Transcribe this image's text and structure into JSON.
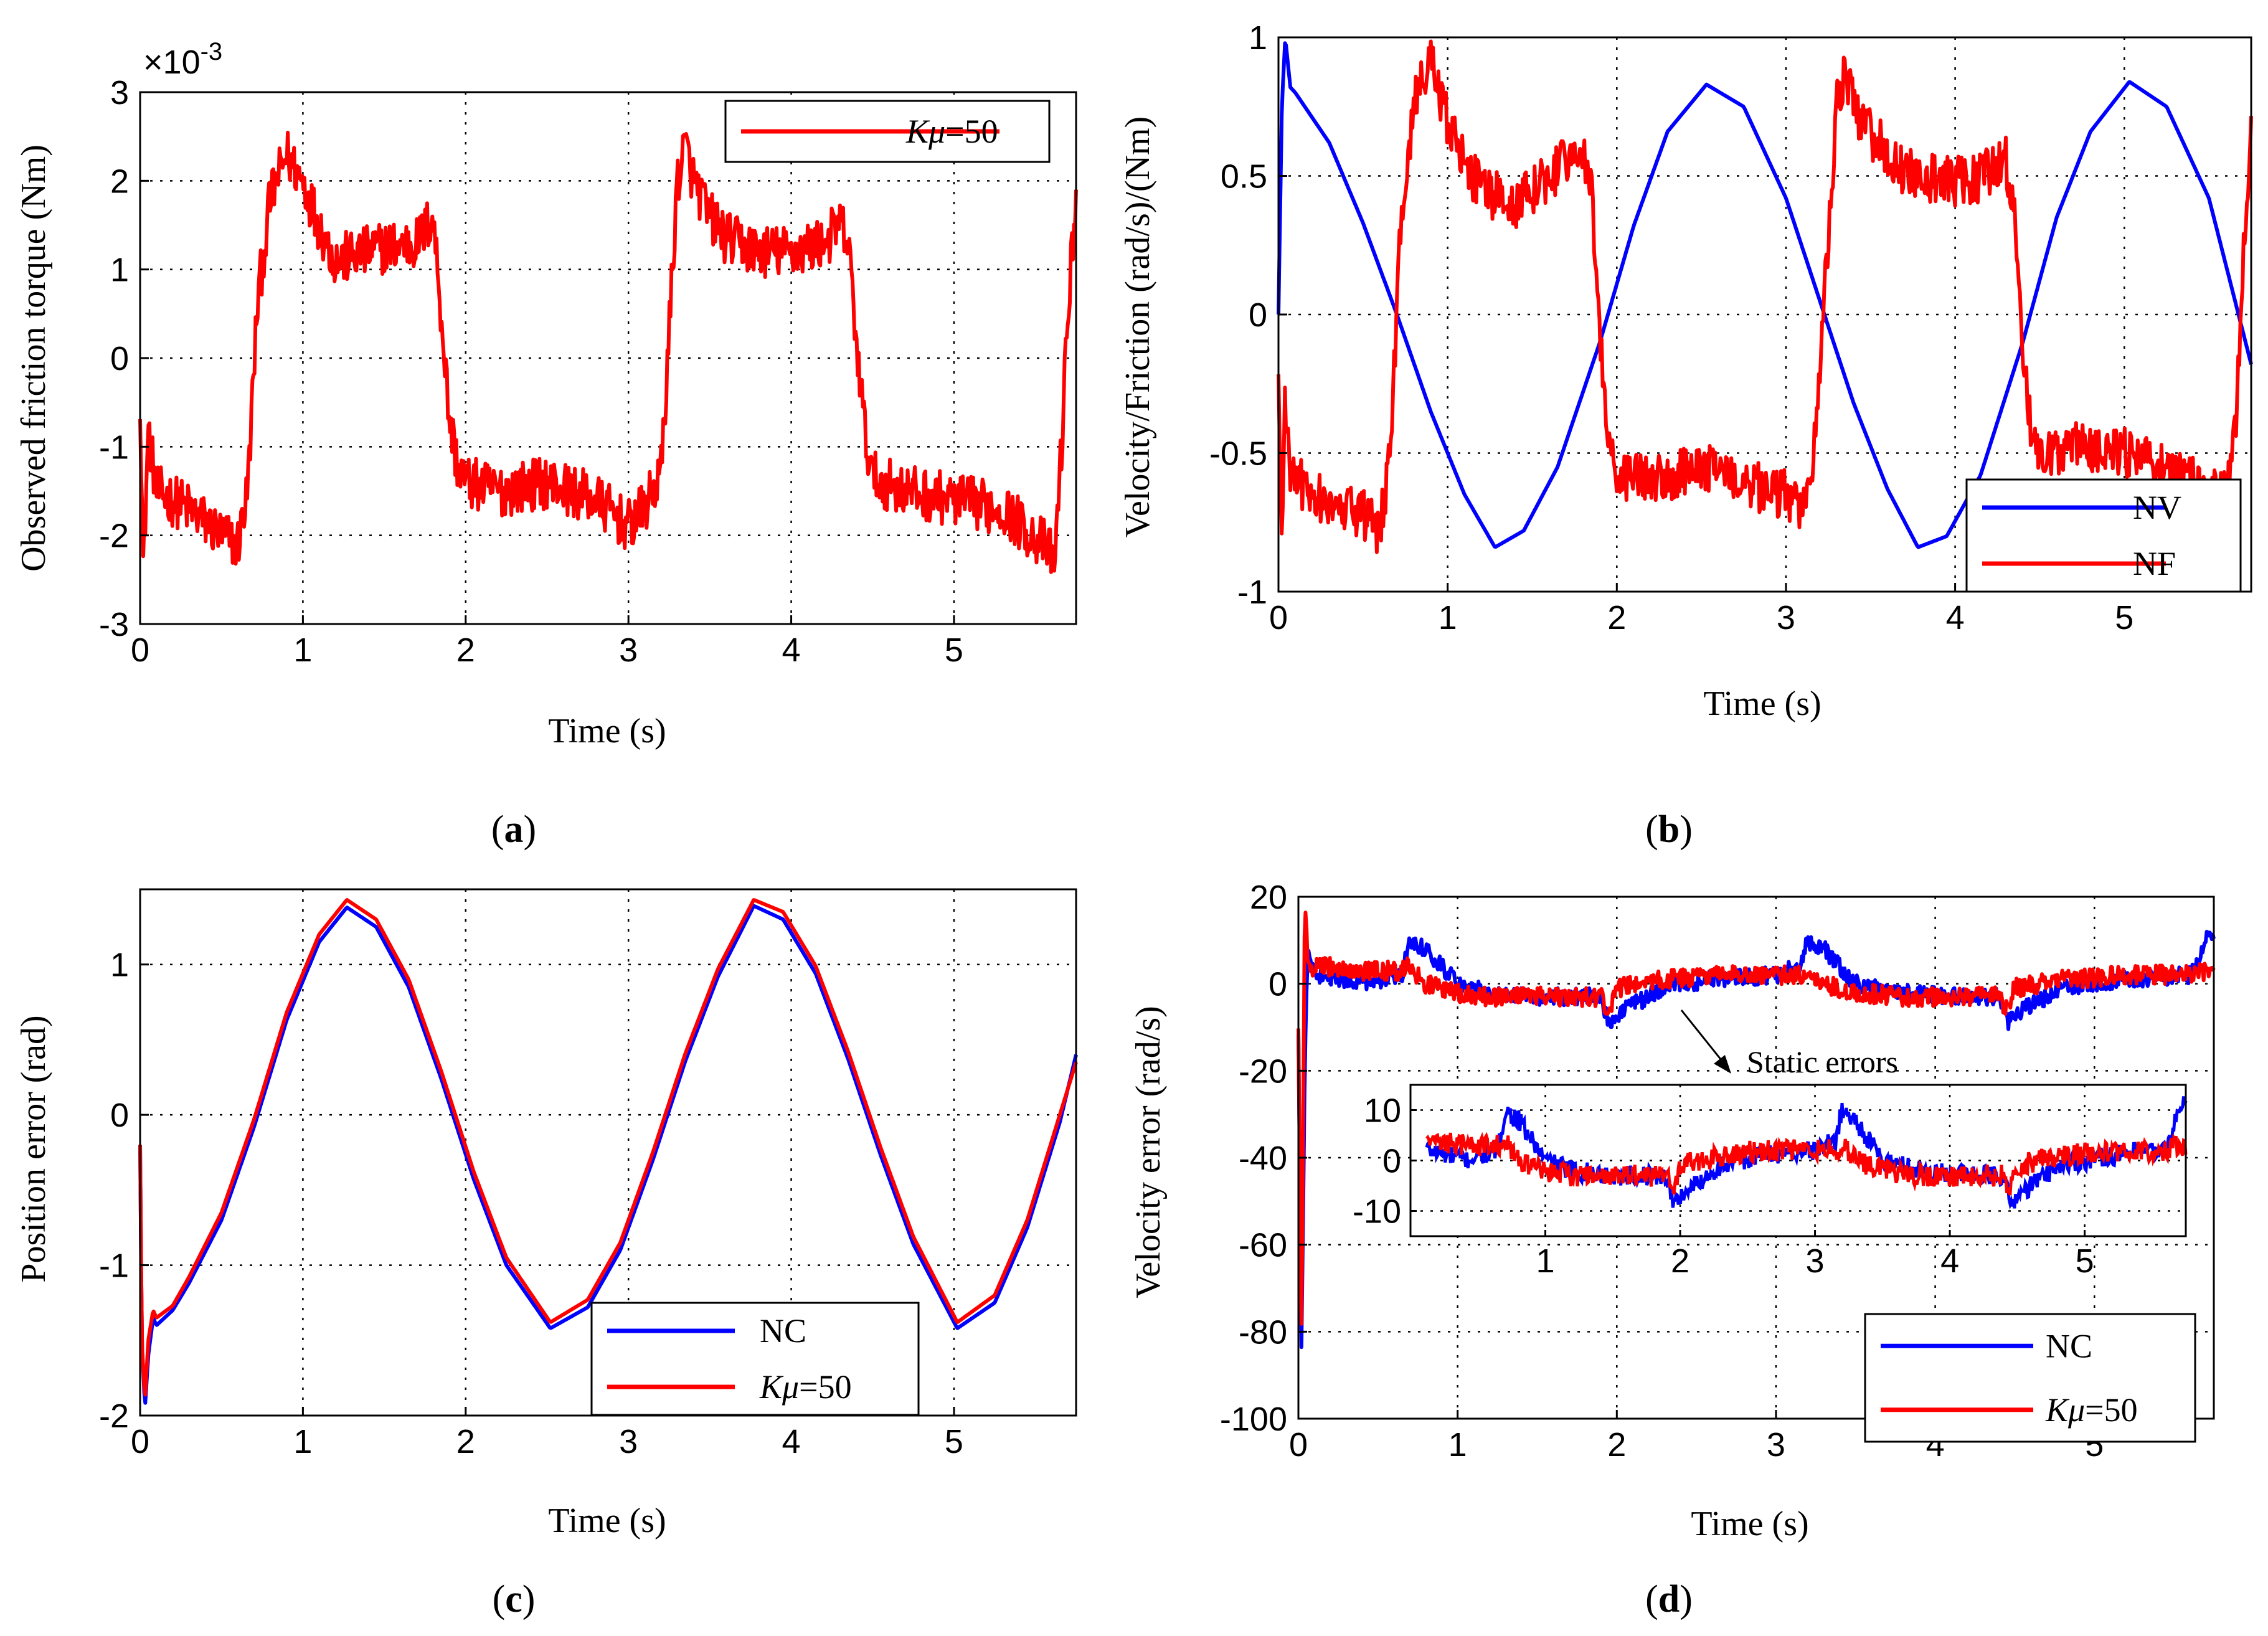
{
  "colors": {
    "blue": "#0000ff",
    "red": "#ff0000",
    "axis": "#000000"
  },
  "chart_data": [
    {
      "type": "line",
      "caption": "a",
      "title": "",
      "xlabel": "Time (s)",
      "ylabel": "Observed friction torque (Nm)",
      "xlim": [
        0,
        5.75
      ],
      "ylim": [
        -3,
        3
      ],
      "y_exponent": "×10",
      "y_exponent_power": "-3",
      "xticks": [
        "0",
        "1",
        "2",
        "3",
        "4",
        "5"
      ],
      "yticks": [
        "-3",
        "-2",
        "-1",
        "0",
        "1",
        "2",
        "3"
      ],
      "legend": {
        "placement": "top-right",
        "entries": [
          {
            "prefix": "K",
            "mu": "μ",
            "suffix": "=50",
            "color": "#ff0000"
          }
        ]
      },
      "series": [
        {
          "name": "Kμ=50",
          "color": "#ff0000",
          "x": [
            0,
            0.02,
            0.05,
            0.1,
            0.3,
            0.5,
            0.6,
            0.66,
            0.72,
            0.8,
            0.9,
            1.0,
            1.1,
            1.2,
            1.3,
            1.5,
            1.7,
            1.8,
            1.85,
            1.9,
            1.95,
            2.0,
            2.2,
            2.5,
            2.8,
            3.0,
            3.1,
            3.2,
            3.25,
            3.3,
            3.35,
            3.4,
            3.5,
            3.6,
            3.8,
            4.0,
            4.2,
            4.3,
            4.35,
            4.4,
            4.45,
            4.5,
            4.7,
            5.0,
            5.3,
            5.55,
            5.62,
            5.66,
            5.7,
            5.75
          ],
          "y": [
            -0.4,
            -2.4,
            -0.8,
            -1.5,
            -1.7,
            -2.0,
            -2.1,
            -1.5,
            0.6,
            1.8,
            2.3,
            2.0,
            1.5,
            1.1,
            1.15,
            1.25,
            1.3,
            1.6,
            0.5,
            -0.7,
            -1.2,
            -1.4,
            -1.5,
            -1.4,
            -1.6,
            -1.9,
            -1.7,
            -1.3,
            0.3,
            2.0,
            2.4,
            2.0,
            1.6,
            1.35,
            1.2,
            1.2,
            1.3,
            1.5,
            1.3,
            0.2,
            -0.8,
            -1.35,
            -1.5,
            -1.6,
            -1.7,
            -2.1,
            -2.3,
            -1.0,
            0.5,
            1.9
          ],
          "noise": 0.3
        }
      ]
    },
    {
      "type": "line",
      "caption": "b",
      "title": "",
      "xlabel": "Time (s)",
      "ylabel": "Velocity/Friction (rad/s)/(Nm)",
      "xlim": [
        0,
        5.75
      ],
      "ylim": [
        -1,
        1
      ],
      "xticks": [
        "0",
        "1",
        "2",
        "3",
        "4",
        "5"
      ],
      "yticks": [
        "-1",
        "-0.5",
        "0",
        "0.5",
        "1"
      ],
      "legend": {
        "placement": "bottom-right",
        "entries": [
          {
            "label": "NV",
            "color": "#0000ff"
          },
          {
            "label": "NF",
            "color": "#ff0000"
          }
        ]
      },
      "series": [
        {
          "name": "NV",
          "color": "#0000ff",
          "x": [
            0,
            0.02,
            0.04,
            0.07,
            0.1,
            0.3,
            0.5,
            0.7,
            0.9,
            1.1,
            1.28,
            1.45,
            1.65,
            1.9,
            2.1,
            2.3,
            2.53,
            2.75,
            3.0,
            3.2,
            3.4,
            3.6,
            3.78,
            3.95,
            4.15,
            4.4,
            4.6,
            4.8,
            5.03,
            5.25,
            5.5,
            5.75
          ],
          "y": [
            0,
            0.75,
            1.0,
            0.82,
            0.8,
            0.62,
            0.33,
            0.0,
            -0.35,
            -0.65,
            -0.84,
            -0.78,
            -0.55,
            -0.1,
            0.32,
            0.66,
            0.83,
            0.75,
            0.42,
            0.05,
            -0.32,
            -0.63,
            -0.84,
            -0.8,
            -0.58,
            -0.1,
            0.35,
            0.66,
            0.84,
            0.75,
            0.42,
            -0.18
          ],
          "noise": 0
        },
        {
          "name": "NF",
          "color": "#ff0000",
          "x": [
            0,
            0.02,
            0.04,
            0.07,
            0.1,
            0.3,
            0.5,
            0.6,
            0.66,
            0.72,
            0.8,
            0.9,
            1.0,
            1.1,
            1.2,
            1.4,
            1.6,
            1.8,
            1.85,
            1.9,
            1.95,
            2.0,
            2.2,
            2.5,
            2.8,
            3.0,
            3.1,
            3.15,
            3.2,
            3.25,
            3.3,
            3.35,
            3.4,
            3.5,
            3.7,
            3.9,
            4.1,
            4.3,
            4.35,
            4.4,
            4.45,
            4.5,
            4.7,
            5.0,
            5.3,
            5.5,
            5.6,
            5.62,
            5.66,
            5.7,
            5.75
          ],
          "y": [
            -0.2,
            -0.9,
            -0.3,
            -0.55,
            -0.6,
            -0.68,
            -0.72,
            -0.78,
            -0.5,
            0.3,
            0.75,
            0.92,
            0.7,
            0.55,
            0.45,
            0.4,
            0.5,
            0.6,
            0.45,
            -0.1,
            -0.45,
            -0.58,
            -0.6,
            -0.55,
            -0.62,
            -0.65,
            -0.72,
            -0.6,
            -0.2,
            0.3,
            0.75,
            0.88,
            0.75,
            0.65,
            0.52,
            0.48,
            0.48,
            0.55,
            0.4,
            -0.1,
            -0.45,
            -0.52,
            -0.48,
            -0.5,
            -0.58,
            -0.62,
            -0.62,
            -0.62,
            -0.4,
            0.2,
            0.7
          ],
          "noise": 0.09
        }
      ]
    },
    {
      "type": "line",
      "caption": "c",
      "title": "",
      "xlabel": "Time (s)",
      "ylabel": "Position error (rad)",
      "xlim": [
        0,
        5.75
      ],
      "ylim": [
        -2,
        1.5
      ],
      "xticks": [
        "0",
        "1",
        "2",
        "3",
        "4",
        "5"
      ],
      "yticks": [
        "-2",
        "-1",
        "0",
        "1"
      ],
      "ytick_values": [
        -2,
        -1,
        0,
        1
      ],
      "legend": {
        "placement": "bottom-right",
        "entries": [
          {
            "label": "NC",
            "color": "#0000ff"
          },
          {
            "prefix": "K",
            "mu": "μ",
            "suffix": "=50",
            "color": "#ff0000"
          }
        ]
      },
      "series": [
        {
          "name": "NC",
          "color": "#0000ff",
          "x": [
            0,
            0.01,
            0.03,
            0.05,
            0.08,
            0.1,
            0.2,
            0.3,
            0.5,
            0.7,
            0.9,
            1.1,
            1.27,
            1.45,
            1.65,
            1.85,
            2.05,
            2.25,
            2.52,
            2.75,
            2.95,
            3.15,
            3.35,
            3.55,
            3.77,
            3.95,
            4.15,
            4.35,
            4.55,
            4.75,
            5.02,
            5.25,
            5.45,
            5.65,
            5.75
          ],
          "y": [
            -0.2,
            -1.5,
            -1.95,
            -1.6,
            -1.35,
            -1.4,
            -1.3,
            -1.12,
            -0.7,
            -0.08,
            0.63,
            1.15,
            1.38,
            1.25,
            0.85,
            0.24,
            -0.43,
            -1.0,
            -1.42,
            -1.28,
            -0.9,
            -0.3,
            0.36,
            0.92,
            1.39,
            1.3,
            0.94,
            0.37,
            -0.27,
            -0.86,
            -1.42,
            -1.25,
            -0.75,
            -0.05,
            0.4
          ],
          "noise": 0
        },
        {
          "name": "Kμ=50",
          "color": "#ff0000",
          "x": [
            0,
            0.01,
            0.03,
            0.05,
            0.08,
            0.1,
            0.2,
            0.3,
            0.5,
            0.7,
            0.9,
            1.1,
            1.27,
            1.45,
            1.65,
            1.85,
            2.05,
            2.25,
            2.52,
            2.75,
            2.95,
            3.15,
            3.35,
            3.55,
            3.77,
            3.95,
            4.15,
            4.35,
            4.55,
            4.75,
            5.02,
            5.25,
            5.45,
            5.65,
            5.75
          ],
          "y": [
            -0.2,
            -1.5,
            -1.9,
            -1.5,
            -1.3,
            -1.35,
            -1.27,
            -1.08,
            -0.65,
            -0.03,
            0.68,
            1.2,
            1.43,
            1.3,
            0.9,
            0.29,
            -0.38,
            -0.95,
            -1.38,
            -1.23,
            -0.85,
            -0.25,
            0.41,
            0.97,
            1.43,
            1.35,
            0.99,
            0.42,
            -0.22,
            -0.81,
            -1.38,
            -1.2,
            -0.7,
            0.0,
            0.35
          ],
          "noise": 0
        }
      ]
    },
    {
      "type": "line",
      "caption": "d",
      "title": "",
      "xlabel": "Time (s)",
      "ylabel": "Velocity error (rad/s)",
      "xlim": [
        0,
        5.75
      ],
      "ylim": [
        -100,
        20
      ],
      "xticks": [
        "0",
        "1",
        "2",
        "3",
        "4",
        "5"
      ],
      "yticks": [
        "-100",
        "-80",
        "-60",
        "-40",
        "-20",
        "0",
        "20"
      ],
      "annotation": "Static errors",
      "legend": {
        "placement": "bottom-right",
        "entries": [
          {
            "label": "NC",
            "color": "#0000ff"
          },
          {
            "prefix": "K",
            "mu": "μ",
            "suffix": "=50",
            "color": "#ff0000"
          }
        ]
      },
      "series": [
        {
          "name": "NC",
          "color": "#0000ff",
          "x": [
            0,
            0.02,
            0.04,
            0.06,
            0.08,
            0.15,
            0.4,
            0.65,
            0.7,
            0.8,
            1.0,
            1.2,
            1.5,
            1.9,
            1.95,
            2.0,
            2.3,
            2.6,
            3.0,
            3.15,
            3.2,
            3.3,
            3.5,
            3.8,
            4.2,
            4.4,
            4.45,
            4.5,
            4.8,
            5.2,
            5.6,
            5.7,
            5.75
          ],
          "y": [
            -10,
            -85,
            -20,
            10,
            3,
            2,
            0,
            2,
            10,
            8,
            0,
            -2,
            -3,
            -3,
            -9,
            -7,
            -1,
            1,
            2,
            4,
            10,
            8,
            0,
            -2,
            -3,
            -3,
            -9,
            -7,
            -1,
            1,
            2,
            10,
            12
          ],
          "noise": 2.0
        },
        {
          "name": "Kμ=50",
          "color": "#ff0000",
          "x": [
            0,
            0.02,
            0.04,
            0.06,
            0.08,
            0.15,
            0.4,
            0.65,
            0.7,
            0.8,
            1.0,
            1.2,
            1.5,
            1.9,
            1.95,
            2.0,
            2.3,
            2.6,
            3.0,
            3.15,
            3.2,
            3.3,
            3.5,
            3.8,
            4.2,
            4.4,
            4.45,
            4.5,
            4.8,
            5.2,
            5.6,
            5.7,
            5.75
          ],
          "y": [
            -10,
            -80,
            18,
            5,
            4,
            4,
            3,
            3,
            4,
            0,
            -2,
            -3,
            -3,
            -3,
            -6,
            -1,
            1,
            2,
            2,
            2,
            3,
            0,
            -2,
            -3,
            -3,
            -3,
            -6,
            -1,
            1,
            2,
            2,
            3,
            3
          ],
          "noise": 2.2
        }
      ],
      "inset": {
        "xlim": [
          0,
          5.75
        ],
        "ylim": [
          -15,
          15
        ],
        "xticks": [
          "1",
          "2",
          "3",
          "4",
          "5"
        ],
        "xtick_values": [
          1,
          2,
          3,
          4,
          5
        ],
        "yticks": [
          "-10",
          "0",
          "10"
        ],
        "ytick_values": [
          -10,
          0,
          10
        ]
      }
    }
  ]
}
